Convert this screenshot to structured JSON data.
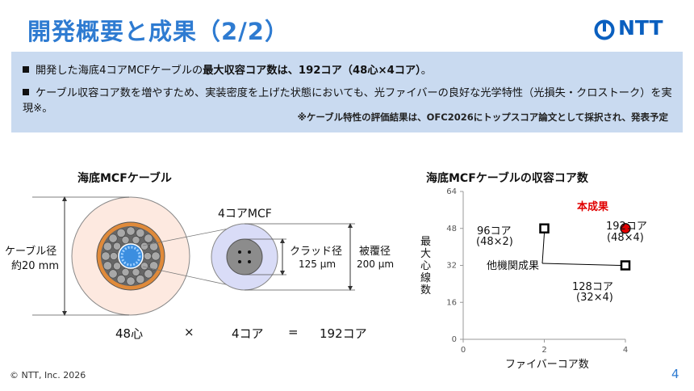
{
  "header": {
    "title": "開発概要と成果（2/2）",
    "logo_text": "NTT",
    "logo_icon": "ntt-circle-logo"
  },
  "summary": {
    "bullet1_prefix": "開発した海底4コアMCFケーブルの",
    "bullet1_bold": "最大収容コア数は、192コア（48心×4コア）",
    "bullet1_suffix": "。",
    "bullet2": "ケーブル収容コア数を増やすため、実装密度を上げた状態においても、光ファイバーの良好な光学特性（光損失・クロストーク）を実現※。",
    "note": "※ケーブル特性の評価結果は、OFC2026にトップスコア論文として採択され、発表予定"
  },
  "cable_diagram": {
    "title": "海底MCFケーブル",
    "cable_dia_label1": "ケーブル径",
    "cable_dia_label2": "約20 mm",
    "mcf_label": "4コアMCF",
    "clad_label1": "クラッド径",
    "clad_label2": "125 μm",
    "coat_label1": "被覆径",
    "coat_label2": "200 μm",
    "equation": {
      "fibers": "48心",
      "times": "×",
      "cores": "4コア",
      "equals": "=",
      "total": "192コア"
    }
  },
  "chart_data": {
    "type": "scatter",
    "title": "海底MCFケーブルの収容コア数",
    "xlabel": "ファイバーコア数",
    "ylabel": "最大心線数",
    "xlim": [
      0,
      4
    ],
    "ylim": [
      0,
      64
    ],
    "xticks": [
      "0",
      "2",
      "4"
    ],
    "yticks": [
      "0",
      "16",
      "32",
      "48",
      "64"
    ],
    "grid": false,
    "series": [
      {
        "name": "他機関成果",
        "color": "#000000",
        "marker": "hollow-square",
        "points": [
          {
            "x": 2,
            "y": 48,
            "label1": "96コア",
            "label2": "(48×2)"
          },
          {
            "x": 4,
            "y": 32,
            "label1": "128コア",
            "label2": "(32×4)"
          }
        ]
      },
      {
        "name": "本成果",
        "color": "#e00000",
        "marker": "filled-circle",
        "points": [
          {
            "x": 4,
            "y": 48,
            "label1": "192コア",
            "label2": "(48×4)"
          }
        ]
      }
    ]
  },
  "footer": {
    "copyright": "© NTT, Inc.  2026",
    "page_number": "4"
  }
}
